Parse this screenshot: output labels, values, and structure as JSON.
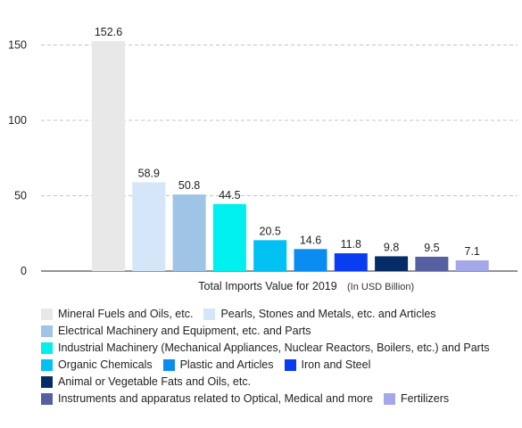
{
  "chart_data": {
    "type": "bar",
    "title": "",
    "xlabel": "Total Imports Value for 2019",
    "xlabel_unit": "(In USD Billion)",
    "ylabel": "",
    "ylim": [
      0,
      160
    ],
    "yticks": [
      0,
      50,
      100,
      150
    ],
    "grid": true,
    "legend_position": "bottom",
    "series": [
      {
        "name": "Mineral Fuels and Oils, etc.",
        "value": 152.6,
        "label": "152.6",
        "color": "#e8e8e8"
      },
      {
        "name": "Pearls, Stones and Metals, etc. and Articles",
        "value": 58.9,
        "label": "58.9",
        "color": "#d4e6f8"
      },
      {
        "name": "Electrical Machinery and Equipment, etc. and Parts",
        "value": 50.8,
        "label": "50.8",
        "color": "#9fc4e6"
      },
      {
        "name": "Industrial Machinery (Mechanical Appliances, Nuclear Reactors, Boilers, etc.) and Parts",
        "value": 44.5,
        "label": "44.5",
        "color": "#00f0f0"
      },
      {
        "name": "Organic Chemicals",
        "value": 20.5,
        "label": "20.5",
        "color": "#00c0f4"
      },
      {
        "name": "Plastic and Articles",
        "value": 14.6,
        "label": "14.6",
        "color": "#0a8cf0"
      },
      {
        "name": "Iron and Steel",
        "value": 11.8,
        "label": "11.8",
        "color": "#0a3cf2"
      },
      {
        "name": "Animal or Vegetable Fats and Oils, etc.",
        "value": 9.8,
        "label": "9.8",
        "color": "#052c66"
      },
      {
        "name": "Instruments and apparatus related to Optical, Medical and more",
        "value": 9.5,
        "label": "9.5",
        "color": "#5560a0"
      },
      {
        "name": "Fertilizers",
        "value": 7.1,
        "label": "7.1",
        "color": "#a4a8e8"
      }
    ],
    "legend_rows": [
      [
        0,
        1
      ],
      [
        2
      ],
      [
        3
      ],
      [
        4,
        5,
        6
      ],
      [
        7
      ],
      [
        8,
        9
      ]
    ]
  }
}
